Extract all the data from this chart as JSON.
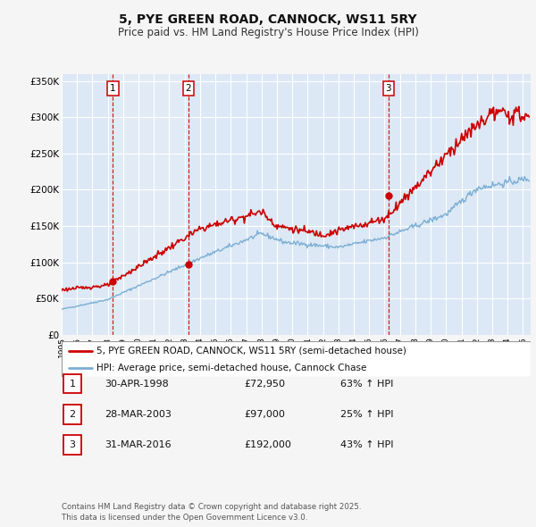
{
  "title": "5, PYE GREEN ROAD, CANNOCK, WS11 5RY",
  "subtitle": "Price paid vs. HM Land Registry's House Price Index (HPI)",
  "legend_line1": "5, PYE GREEN ROAD, CANNOCK, WS11 5RY (semi-detached house)",
  "legend_line2": "HPI: Average price, semi-detached house, Cannock Chase",
  "transactions": [
    {
      "num": 1,
      "date": "30-APR-1998",
      "price": 72950,
      "price_str": "£72,950",
      "pct": "63%",
      "year_x": 1998.33
    },
    {
      "num": 2,
      "date": "28-MAR-2003",
      "price": 97000,
      "price_str": "£97,000",
      "pct": "25%",
      "year_x": 2003.25
    },
    {
      "num": 3,
      "date": "31-MAR-2016",
      "price": 192000,
      "price_str": "£192,000",
      "pct": "43%",
      "year_x": 2016.25
    }
  ],
  "vline_color": "#cc0000",
  "property_color": "#cc0000",
  "hpi_color": "#7bafd4",
  "plot_bg": "#dce8f5",
  "grid_color": "#ffffff",
  "fig_bg": "#f5f5f5",
  "ylim": [
    0,
    360000
  ],
  "xlim_start": 1995,
  "xlim_end": 2025.5,
  "ylabel_ticks": [
    0,
    50000,
    100000,
    150000,
    200000,
    250000,
    300000,
    350000
  ],
  "ylabel_labels": [
    "£0",
    "£50K",
    "£100K",
    "£150K",
    "£200K",
    "£250K",
    "£300K",
    "£350K"
  ],
  "footer_line1": "Contains HM Land Registry data © Crown copyright and database right 2025.",
  "footer_line2": "This data is licensed under the Open Government Licence v3.0.",
  "hpi_seed": 42,
  "prop_seed": 123
}
